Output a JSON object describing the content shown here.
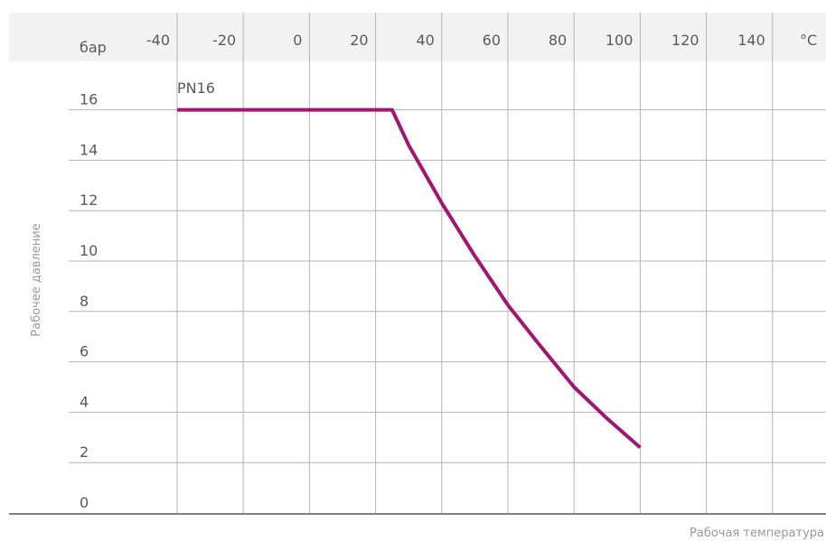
{
  "chart_data": {
    "type": "line",
    "title": "",
    "ylabel": "Рабочее давление",
    "xlabel": "Рабочая температура",
    "y_unit": "бар",
    "x_unit": "°C",
    "x_ticks": [
      "-40",
      "-20",
      "0",
      "20",
      "40",
      "60",
      "80",
      "100",
      "120",
      "140"
    ],
    "y_ticks": [
      "16",
      "14",
      "12",
      "10",
      "8",
      "6",
      "4",
      "2",
      "0"
    ],
    "xlim": [
      -40,
      140
    ],
    "ylim": [
      0,
      16
    ],
    "grid": true,
    "series": [
      {
        "name": "PN16",
        "color": "#a0176f",
        "points": [
          [
            -40,
            16
          ],
          [
            -30,
            16
          ],
          [
            -20,
            16
          ],
          [
            -10,
            16
          ],
          [
            0,
            16
          ],
          [
            10,
            16
          ],
          [
            20,
            16
          ],
          [
            25,
            16
          ],
          [
            30,
            14.6
          ],
          [
            40,
            12.3
          ],
          [
            50,
            10.2
          ],
          [
            60,
            8.25
          ],
          [
            70,
            6.6
          ],
          [
            80,
            5.0
          ],
          [
            90,
            3.75
          ],
          [
            100,
            2.6
          ]
        ]
      }
    ]
  },
  "colors": {
    "header_band": "#f2f2f2",
    "grid": "#b4b4b4",
    "baseline": "#7d7d7d"
  }
}
